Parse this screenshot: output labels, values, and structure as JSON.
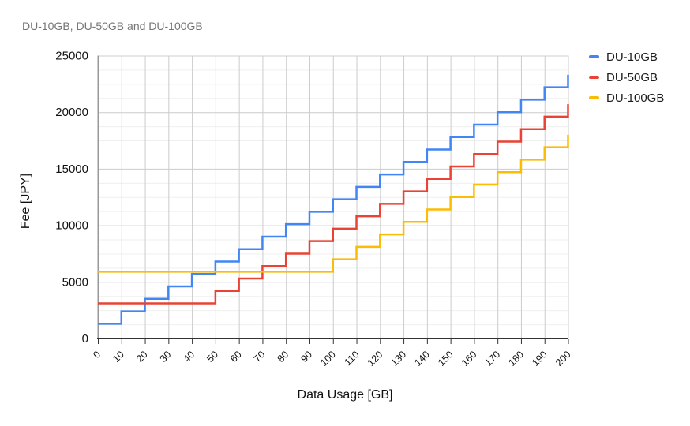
{
  "title": "DU-10GB, DU-50GB and DU-100GB",
  "chart_data": {
    "type": "line",
    "line_style": "step-before",
    "title": "DU-10GB, DU-50GB and DU-100GB",
    "xlabel": "Data Usage [GB]",
    "ylabel": "Fee [JPY]",
    "xlim": [
      0,
      200
    ],
    "ylim": [
      0,
      25000
    ],
    "x_ticks": [
      0,
      10,
      20,
      30,
      40,
      50,
      60,
      70,
      80,
      90,
      100,
      110,
      120,
      130,
      140,
      150,
      160,
      170,
      180,
      190,
      200
    ],
    "y_ticks": [
      0,
      5000,
      10000,
      15000,
      20000,
      25000
    ],
    "y_minor_step": 1250,
    "grid": true,
    "legend_position": "top-right",
    "x": [
      0,
      10,
      20,
      30,
      40,
      50,
      60,
      70,
      80,
      90,
      100,
      110,
      120,
      130,
      140,
      150,
      160,
      170,
      180,
      190,
      200
    ],
    "series": [
      {
        "name": "DU-10GB",
        "color": "#4285F4",
        "values": [
          1300,
          2400,
          3500,
          4600,
          5700,
          6800,
          7900,
          9000,
          10100,
          11200,
          12300,
          13400,
          14500,
          15600,
          16700,
          17800,
          18900,
          20000,
          21100,
          22200,
          23300
        ]
      },
      {
        "name": "DU-50GB",
        "color": "#EA4335",
        "values": [
          3100,
          3100,
          3100,
          3100,
          3100,
          4200,
          5300,
          6400,
          7500,
          8600,
          9700,
          10800,
          11900,
          13000,
          14100,
          15200,
          16300,
          17400,
          18500,
          19600,
          20700
        ]
      },
      {
        "name": "DU-100GB",
        "color": "#FBBC04",
        "values": [
          5900,
          5900,
          5900,
          5900,
          5900,
          5900,
          5900,
          5900,
          5900,
          5900,
          7000,
          8100,
          9200,
          10300,
          11400,
          12500,
          13600,
          14700,
          15800,
          16900,
          18000
        ]
      }
    ]
  },
  "styles": {
    "title_color": "#757575",
    "grid_major": "#cccccc",
    "grid_minor": "#efefef",
    "axis_line": "#333333",
    "y_axis_line": "#999999",
    "tick_text": "#111111"
  }
}
